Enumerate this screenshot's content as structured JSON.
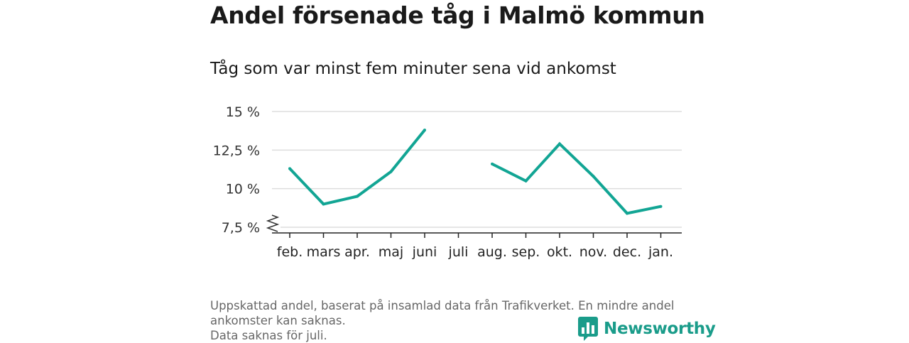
{
  "title": "Andel försenade tåg i Malmö kommun",
  "subtitle": "Tåg som var minst fem minuter sena vid ankomst",
  "footnote": {
    "line1": "Uppskattad andel, baserat på insamlad data från Trafikverket. En mindre andel",
    "line2": "ankomster kan saknas.",
    "line3": "Data saknas för juli."
  },
  "logo": {
    "text": "Newsworthy",
    "icon": "bar-chart-icon"
  },
  "colors": {
    "line": "#12a594",
    "logo": "#1a9c8a",
    "grid": "#dddddd",
    "axis": "#222222"
  },
  "chart_data": {
    "type": "line",
    "categories": [
      "feb.",
      "mars",
      "apr.",
      "maj",
      "juni",
      "juli",
      "aug.",
      "sep.",
      "okt.",
      "nov.",
      "dec.",
      "jan."
    ],
    "series": [
      {
        "values": [
          11.3,
          9.0,
          9.5,
          11.1,
          13.8,
          null,
          11.6,
          10.5,
          12.9,
          10.8,
          8.4,
          8.85
        ]
      }
    ],
    "yticks": [
      7.5,
      10,
      12.5,
      15
    ],
    "ytick_labels": [
      "7,5 %",
      "10 %",
      "12,5 %",
      "15 %"
    ],
    "ylim": [
      7.5,
      15
    ],
    "grid": true,
    "axis_break": true
  }
}
